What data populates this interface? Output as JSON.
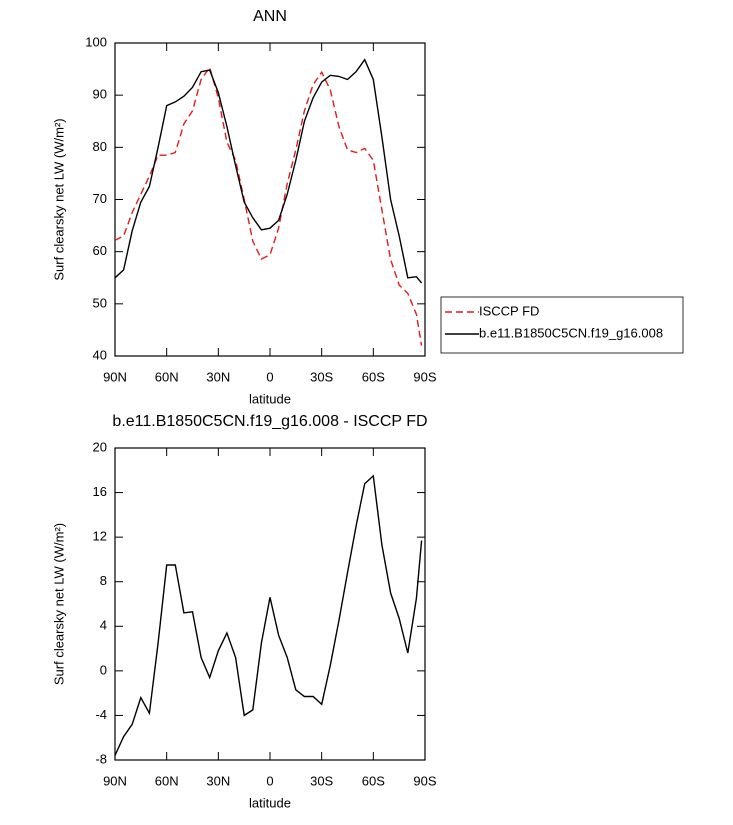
{
  "chart_data": [
    {
      "type": "line",
      "title": "ANN",
      "xlabel": "latitude",
      "ylabel": "Surf clearsky net LW (W/m²)",
      "x": [
        90,
        85,
        80,
        75,
        70,
        65,
        60,
        55,
        50,
        45,
        40,
        35,
        30,
        25,
        20,
        15,
        10,
        5,
        0,
        -5,
        -10,
        -15,
        -20,
        -25,
        -30,
        -35,
        -40,
        -45,
        -50,
        -55,
        -60,
        -65,
        -70,
        -75,
        -80,
        -85,
        -88
      ],
      "series": [
        {
          "name": "ISCCP FD",
          "color": "#e41a1c",
          "dash": "dashed",
          "values": [
            62.2,
            63,
            67.5,
            71,
            74.5,
            78.5,
            78.5,
            79,
            84.5,
            87,
            93,
            95.3,
            89.5,
            81,
            77.5,
            70,
            62,
            58.6,
            59.4,
            64.5,
            73,
            79.5,
            87,
            92,
            94.4,
            91,
            84,
            79.5,
            79,
            79.8,
            77.5,
            68,
            58.5,
            53.6,
            52,
            48,
            42
          ]
        },
        {
          "name": "b.e11.B1850C5CN.f19_g16.008",
          "color": "#000000",
          "dash": "solid",
          "values": [
            55,
            56.5,
            64,
            69.5,
            72.5,
            80,
            88,
            88.7,
            89.8,
            91.5,
            94.5,
            94.8,
            90.5,
            84,
            76.5,
            69.5,
            66.5,
            64.2,
            64.5,
            66,
            71,
            77.5,
            85,
            89.5,
            92.5,
            93.8,
            93.6,
            93,
            94.5,
            96.8,
            93,
            82,
            70,
            63,
            55,
            55.2,
            54
          ]
        }
      ],
      "xlim": [
        90,
        -90
      ],
      "xticks": [
        {
          "value": 90,
          "label": "90N"
        },
        {
          "value": 60,
          "label": "60N"
        },
        {
          "value": 30,
          "label": "30N"
        },
        0,
        {
          "value": -30,
          "label": "30S"
        },
        {
          "value": -60,
          "label": "60S"
        },
        {
          "value": -90,
          "label": "90S"
        }
      ],
      "ylim": [
        40,
        100
      ],
      "yticks": [
        40,
        50,
        60,
        70,
        80,
        90,
        100
      ],
      "legend": "outside-right"
    },
    {
      "type": "line",
      "title": "b.e11.B1850C5CN.f19_g16.008 - ISCCP FD",
      "xlabel": "latitude",
      "ylabel": "Surf clearsky net LW (W/m²)",
      "x": [
        90,
        85,
        80,
        75,
        70,
        65,
        60,
        55,
        50,
        45,
        40,
        35,
        30,
        25,
        20,
        15,
        10,
        5,
        0,
        -5,
        -10,
        -15,
        -20,
        -25,
        -30,
        -35,
        -40,
        -45,
        -50,
        -55,
        -60,
        -65,
        -70,
        -75,
        -80,
        -85,
        -88
      ],
      "values": [
        -7.6,
        -5.9,
        -4.8,
        -2.4,
        -3.8,
        2.5,
        9.5,
        9.5,
        5.2,
        5.3,
        1.2,
        -0.6,
        1.8,
        3.4,
        1.2,
        -4,
        -3.5,
        2.5,
        6.6,
        3.2,
        1.2,
        -1.7,
        -2.3,
        -2.3,
        -3,
        0.5,
        4.5,
        8.8,
        13,
        16.8,
        17.5,
        11.3,
        7,
        4.7,
        1.6,
        6.5,
        11.7
      ],
      "color": "#000000",
      "xlim": [
        90,
        -90
      ],
      "xticks": [
        {
          "value": 90,
          "label": "90N"
        },
        {
          "value": 60,
          "label": "60N"
        },
        {
          "value": 30,
          "label": "30N"
        },
        0,
        {
          "value": -30,
          "label": "30S"
        },
        {
          "value": -60,
          "label": "60S"
        },
        {
          "value": -90,
          "label": "90S"
        }
      ],
      "ylim": [
        -8,
        20
      ],
      "yticks": [
        -8,
        -4,
        0,
        4,
        8,
        12,
        16,
        20
      ]
    }
  ]
}
